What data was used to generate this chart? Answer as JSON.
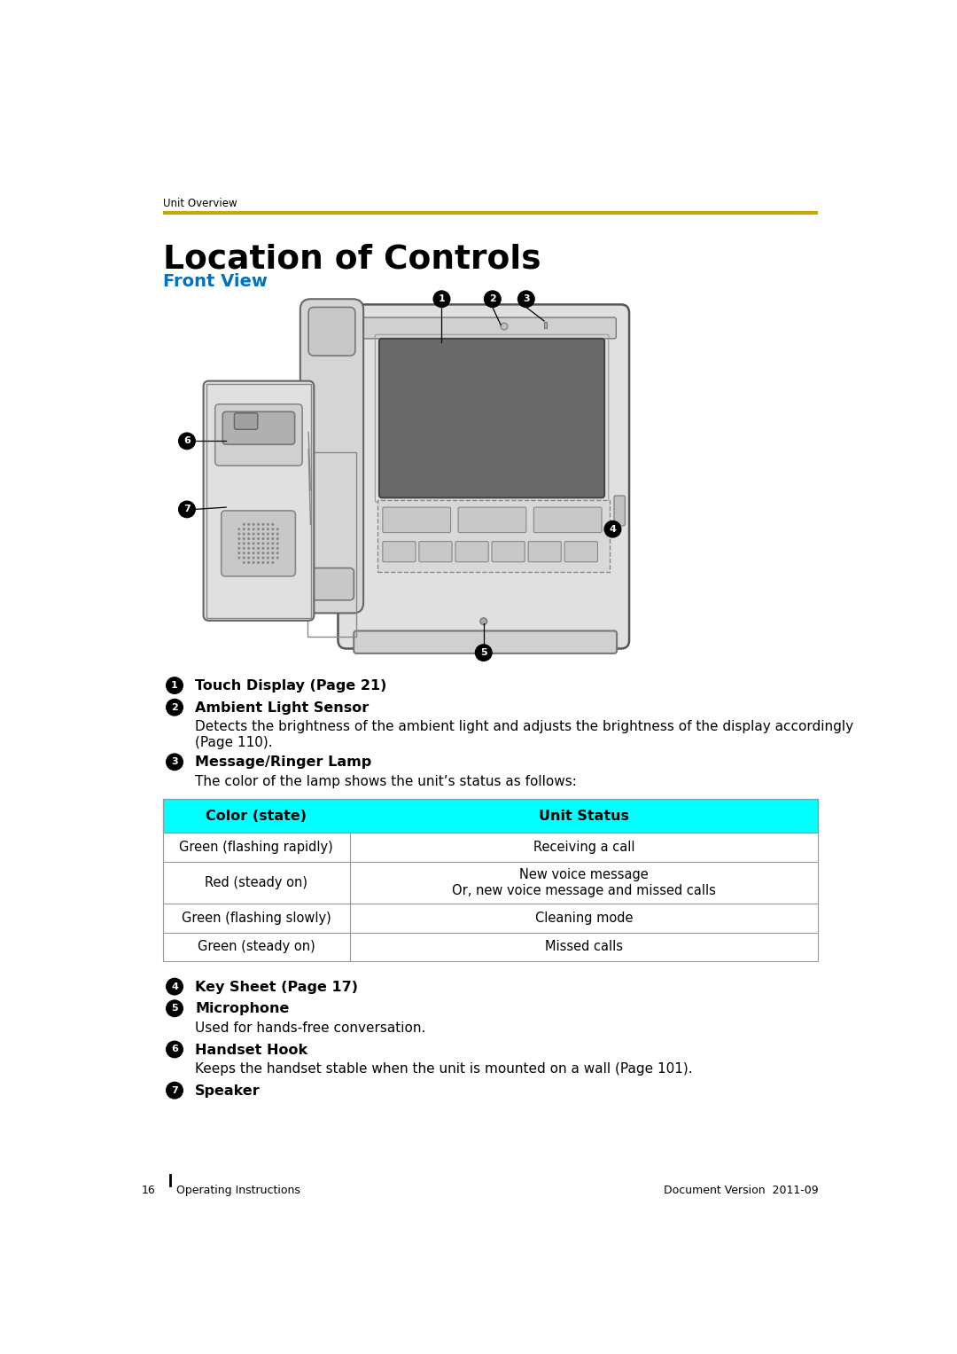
{
  "page_header": "Unit Overview",
  "gold_line_color": "#C8A800",
  "title": "Location of Controls",
  "subtitle": "Front View",
  "subtitle_color": "#0070C0",
  "bg_color": "#FFFFFF",
  "table_header_bg": "#00FFFF",
  "table_border_color": "#999999",
  "table_data": [
    [
      "Green (flashing rapidly)",
      "Receiving a call"
    ],
    [
      "Red (steady on)",
      "New voice message\nOr, new voice message and missed calls"
    ],
    [
      "Green (flashing slowly)",
      "Cleaning mode"
    ],
    [
      "Green (steady on)",
      "Missed calls"
    ]
  ],
  "footer_page": "16",
  "footer_center": "Operating Instructions",
  "footer_right": "Document Version  2011-09"
}
